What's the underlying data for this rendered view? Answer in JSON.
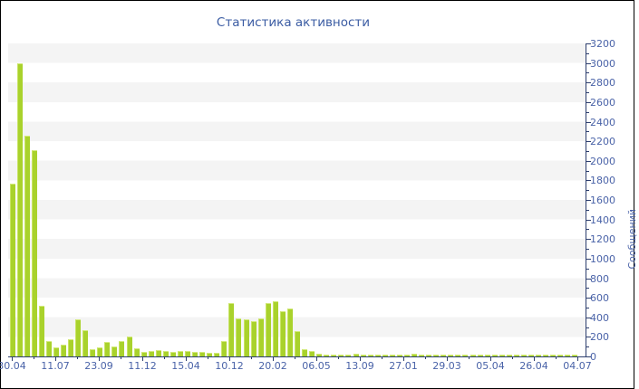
{
  "title": "Статистика активности",
  "colors": {
    "bar": "#a9d22c",
    "bar_edge": "#c9e466",
    "axis_line": "#2e3f6e",
    "tick_label": "#4a63a8",
    "title_text": "#3b5ca3",
    "stripe": "#f4f4f4",
    "background": "#ffffff",
    "border": "#000000"
  },
  "chart_data": {
    "type": "bar",
    "title": "Статистика активности",
    "xlabel": "",
    "ylabel": "Сообщений",
    "ylim": [
      0,
      3200
    ],
    "ytick_step": 200,
    "ytick_minor_step": 100,
    "yticks": [
      0,
      200,
      400,
      600,
      800,
      1000,
      1200,
      1400,
      1600,
      1800,
      2000,
      2200,
      2400,
      2600,
      2800,
      3000,
      3200
    ],
    "xtick_labels": [
      "30.04",
      "11.07",
      "23.09",
      "11.12",
      "15.04",
      "10.12",
      "20.02",
      "06.05",
      "13.09",
      "27.01",
      "29.03",
      "05.04",
      "26.04",
      "04.07"
    ],
    "axis_position": "right",
    "grid": "horizontal-stripes",
    "legend": "none",
    "values": [
      1770,
      3000,
      2260,
      2110,
      520,
      160,
      95,
      120,
      175,
      375,
      265,
      75,
      90,
      150,
      105,
      160,
      205,
      80,
      48,
      52,
      62,
      55,
      46,
      52,
      60,
      50,
      44,
      37,
      35,
      155,
      550,
      390,
      380,
      365,
      385,
      545,
      560,
      465,
      490,
      260,
      75,
      58,
      25,
      18,
      22,
      15,
      20,
      25,
      17,
      20,
      15,
      22,
      18,
      20,
      16,
      24,
      18,
      15,
      20,
      22,
      17,
      19,
      15,
      23,
      18,
      20,
      15,
      22,
      17,
      20,
      18,
      15,
      21,
      19,
      16,
      22,
      18,
      20
    ]
  }
}
